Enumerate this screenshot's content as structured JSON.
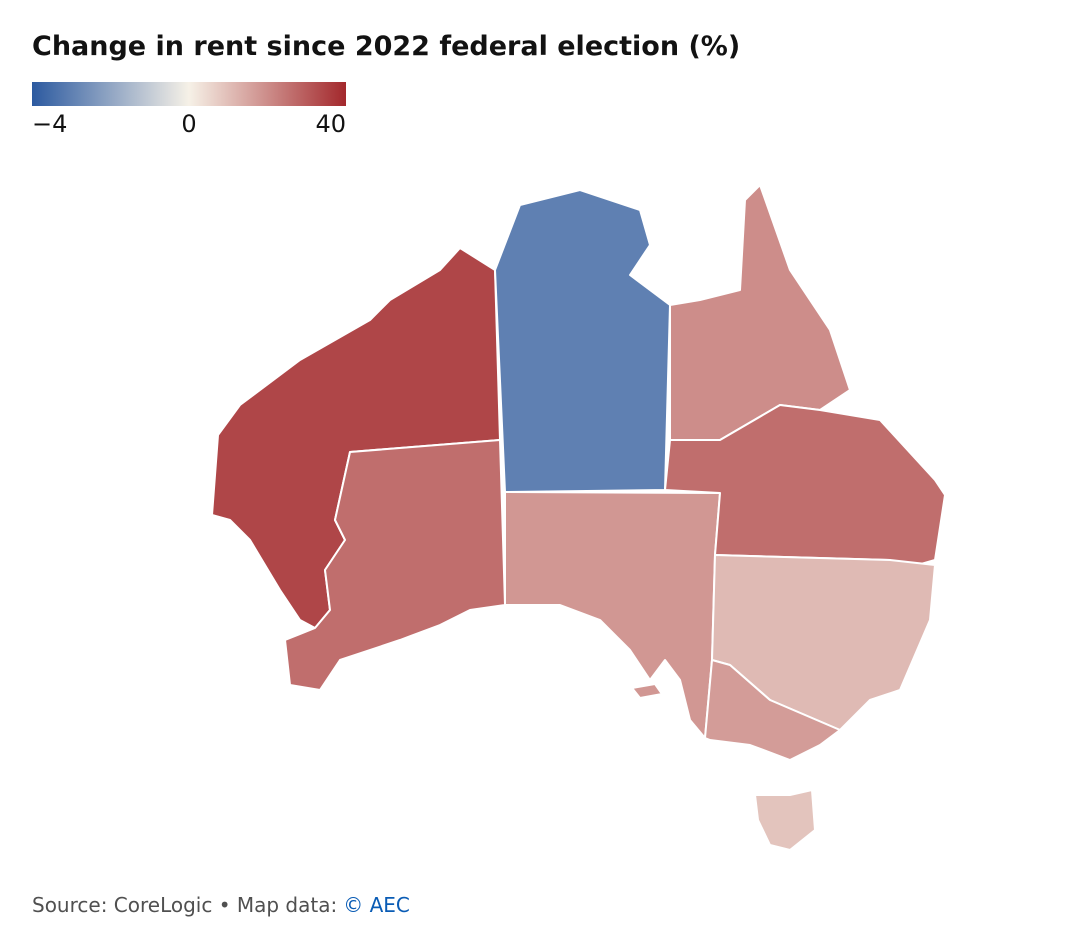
{
  "map": {
    "title": "Change in rent since 2022 federal election (%)",
    "legend": {
      "ticks": [
        {
          "value": -4,
          "label": "−4"
        },
        0,
        40
      ],
      "colors": [
        "#2c5aa0",
        "#f6f1e7",
        "#a3282c"
      ]
    },
    "values": [
      34,
      26,
      -3,
      18,
      20,
      26,
      11,
      17,
      9,
      18
    ],
    "source": "Source: CoreLogic • Map data:",
    "source_link": "© AEC"
  }
}
